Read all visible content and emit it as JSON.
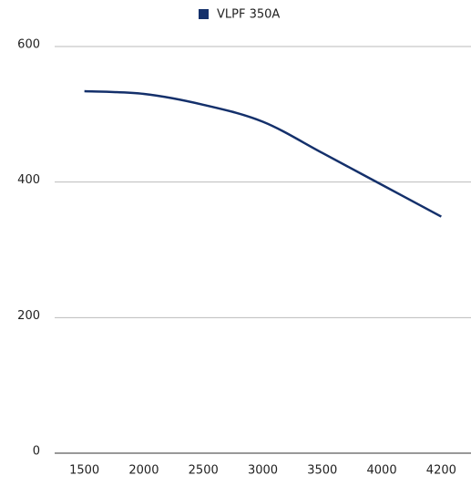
{
  "chart_data": {
    "type": "line",
    "categories": [
      "1500",
      "2000",
      "2500",
      "3000",
      "3500",
      "4000",
      "4200"
    ],
    "series": [
      {
        "name": "VLPF 350A",
        "color": "#14306b",
        "values": [
          534,
          530,
          514,
          489,
          443,
          396,
          349
        ]
      }
    ],
    "ylim": [
      0,
      600
    ],
    "yticks": [
      0,
      200,
      400,
      600
    ],
    "grid": true,
    "legend": "top"
  }
}
